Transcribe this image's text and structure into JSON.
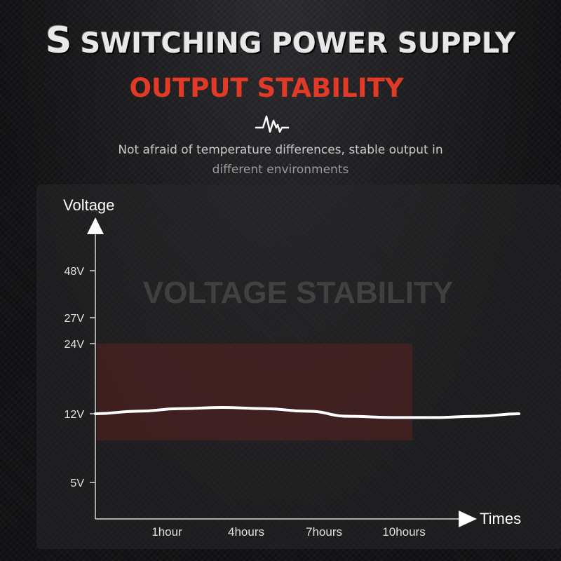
{
  "header": {
    "title_initial": "S",
    "title_rest": "SWITCHING POWER SUPPLY",
    "subtitle": "OUTPUT STABILITY",
    "icon": "pulse-wave-icon",
    "description_line1": "Not afraid of temperature differences, stable output in",
    "description_line2": "different environments"
  },
  "colors": {
    "accent": "#e23a26",
    "band": "#5a2020",
    "line": "#ffffff"
  },
  "chart_data": {
    "type": "line",
    "watermark": "VOLTAGE STABILITY",
    "ylabel": "Voltage",
    "xlabel": "Times",
    "y_ticks": [
      "48V",
      "27V",
      "24V",
      "12V",
      "5V"
    ],
    "x_ticks": [
      "1hour",
      "4hours",
      "7hours",
      "10hours"
    ],
    "highlight_band": {
      "from": "24V",
      "to": "below 12V"
    },
    "series": [
      {
        "values": [
          12.0,
          12.2,
          12.4,
          12.5,
          12.4,
          12.2,
          11.8,
          11.7,
          11.7,
          11.8,
          12.0
        ]
      }
    ]
  }
}
